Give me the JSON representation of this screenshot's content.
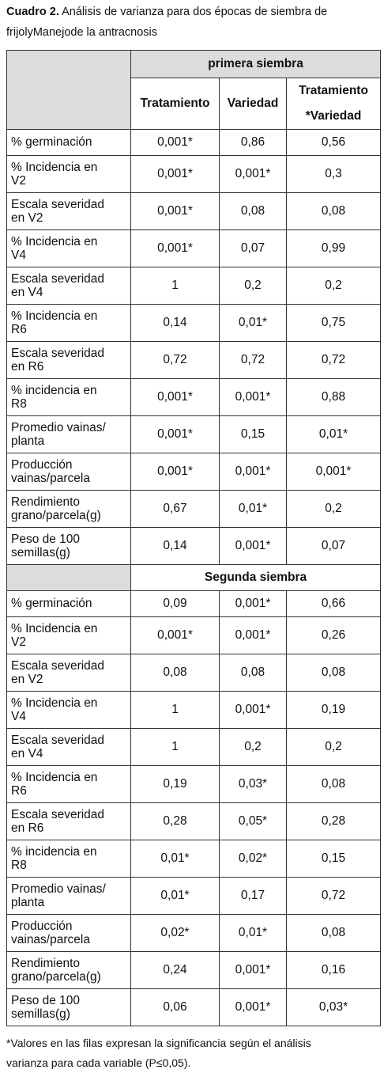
{
  "caption": {
    "label": "Cuadro 2.",
    "text": "Análisis de varianza para dos épocas de siembra de frijolyManejode la antracnosis"
  },
  "table": {
    "header": {
      "group": "primera siembra",
      "columns": [
        "Tratamiento",
        "Variedad",
        "Tratamiento",
        "*Variedad"
      ]
    },
    "sections": [
      {
        "rows": [
          [
            "% germinación",
            "0,001*",
            "0,86",
            "0,56"
          ],
          [
            "% Incidencia en V2",
            "0,001*",
            "0,001*",
            "0,3"
          ],
          [
            "Escala severidad en V2",
            "0,001*",
            "0,08",
            "0,08"
          ],
          [
            "% Incidencia en V4",
            "0,001*",
            "0,07",
            "0,99"
          ],
          [
            "Escala severidad en V4",
            "1",
            "0,2",
            "0,2"
          ],
          [
            "% Incidencia en R6",
            "0,14",
            "0,01*",
            "0,75"
          ],
          [
            "Escala severidad en R6",
            "0,72",
            "0,72",
            "0,72"
          ],
          [
            "% incidencia en R8",
            "0,001*",
            "0,001*",
            "0,88"
          ],
          [
            "Promedio vainas/ planta",
            "0,001*",
            "0,15",
            "0,01*"
          ],
          [
            "Producción vainas/parcela",
            "0,001*",
            "0,001*",
            "0,001*"
          ],
          [
            "Rendimiento grano/parcela(g)",
            "0,67",
            "0,01*",
            "0,2"
          ],
          [
            "Peso de 100 semillas(g)",
            "0,14",
            "0,001*",
            "0,07"
          ]
        ]
      },
      {
        "title": "Segunda siembra",
        "rows": [
          [
            "% germinación",
            "0,09",
            "0,001*",
            "0,66"
          ],
          [
            "% Incidencia en V2",
            "0,001*",
            "0,001*",
            "0,26"
          ],
          [
            "Escala severidad en V2",
            "0,08",
            "0,08",
            "0,08"
          ],
          [
            "% Incidencia en V4",
            "1",
            "0,001*",
            "0,19"
          ],
          [
            "Escala severidad en V4",
            "1",
            "0,2",
            "0,2"
          ],
          [
            "% Incidencia en R6",
            "0,19",
            "0,03*",
            "0,08"
          ],
          [
            "Escala severidad en R6",
            "0,28",
            "0,05*",
            "0,28"
          ],
          [
            "% incidencia en R8",
            "0,01*",
            "0,02*",
            "0,15"
          ],
          [
            "Promedio vainas/ planta",
            "0,01*",
            "0,17",
            "0,72"
          ],
          [
            "Producción vainas/parcela",
            "0,02*",
            "0,01*",
            "0,08"
          ],
          [
            "Rendimiento grano/parcela(g)",
            "0,24",
            "0,001*",
            "0,16"
          ],
          [
            "Peso de 100 semillas(g)",
            "0,06",
            "0,001*",
            "0,03*"
          ]
        ]
      }
    ]
  },
  "footnote": "*Valores en las filas expresan la significancia según el análisis varianza para cada variable (P≤0,05)."
}
